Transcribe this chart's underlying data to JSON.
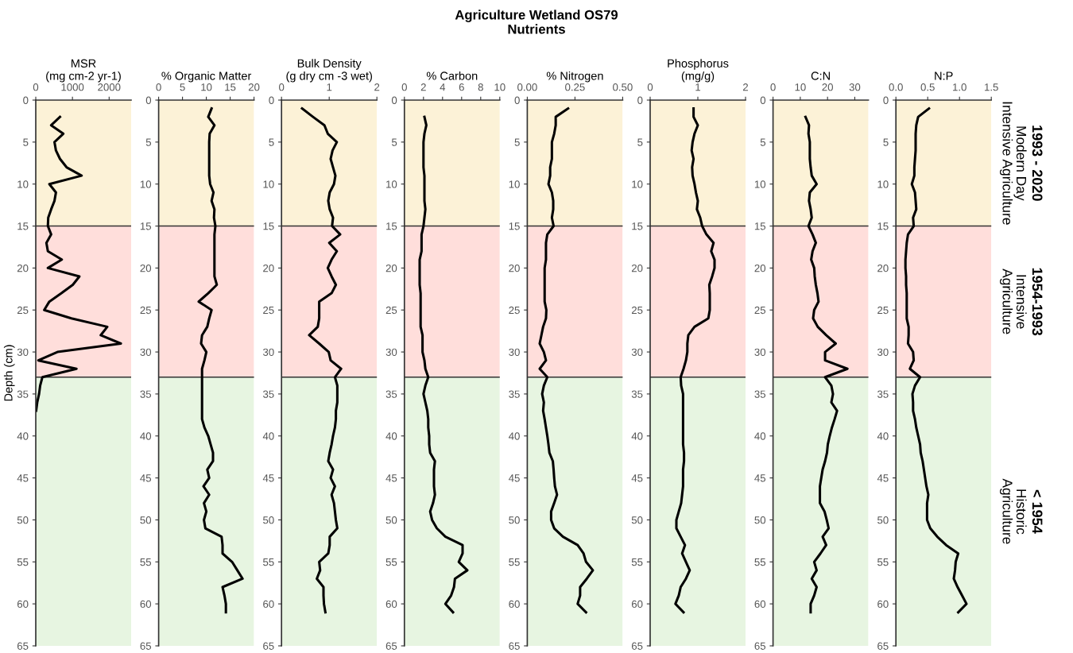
{
  "chart_data": [
    {
      "type": "line",
      "orientation": "horizontal",
      "xlabel": "MSR\n(mg cm-2 yr-1)",
      "ylabel": "Depth (cm)",
      "color": "#000000",
      "x": [
        2,
        3,
        4,
        5,
        6,
        7,
        8,
        9,
        10,
        11,
        12,
        13,
        14,
        15,
        16,
        17,
        18,
        19,
        20,
        21,
        22,
        23,
        24,
        25,
        26,
        27,
        28,
        29,
        30,
        31,
        32,
        33,
        34,
        35,
        36,
        37
      ],
      "values": [
        660,
        420,
        750,
        510,
        550,
        660,
        840,
        1250,
        370,
        550,
        510,
        420,
        340,
        330,
        420,
        290,
        330,
        710,
        330,
        1190,
        1010,
        700,
        370,
        230,
        970,
        1950,
        1770,
        2320,
        590,
        70,
        1110,
        180,
        120,
        90,
        40,
        10
      ],
      "xlim": [
        0,
        2600
      ],
      "xticks": [
        0,
        1000,
        2000
      ],
      "ylim": [
        65,
        0
      ],
      "yticks": [
        0,
        5,
        10,
        15,
        20,
        25,
        30,
        35,
        40,
        45,
        50,
        55,
        60,
        65
      ],
      "bands": [
        {
          "axis": "y",
          "from": 0,
          "to": 15,
          "color": "#fcf2d7"
        },
        {
          "axis": "y",
          "from": 15,
          "to": 33,
          "color": "#ffdedb"
        },
        {
          "axis": "y",
          "from": 33,
          "to": 65,
          "color": "#e7f5e1"
        }
      ],
      "ref_lines": [
        {
          "axis": "y",
          "value": 15,
          "color": "#333333"
        },
        {
          "axis": "y",
          "value": 33,
          "color": "#333333"
        }
      ]
    },
    {
      "type": "line",
      "orientation": "horizontal",
      "xlabel": "% Organic Matter",
      "color": "#000000",
      "x": [
        1,
        2,
        3,
        4,
        5,
        6,
        7,
        8,
        9,
        10,
        11,
        12,
        13,
        14,
        15,
        16,
        17,
        18,
        19,
        20,
        21,
        22,
        23,
        24,
        25,
        26,
        27,
        28,
        29,
        30,
        31,
        32,
        33,
        34,
        35,
        36,
        37,
        38,
        39,
        40,
        41,
        42,
        43,
        44,
        45,
        46,
        47,
        48,
        49,
        50,
        51,
        52,
        53,
        54,
        55,
        56,
        57,
        58,
        59,
        60,
        61
      ],
      "values": [
        11.1,
        10.4,
        11.7,
        10.7,
        10.6,
        10.6,
        10.6,
        10.6,
        10.6,
        10.8,
        11.5,
        11.1,
        11.7,
        11.6,
        11.9,
        11.7,
        11.7,
        11.7,
        11.7,
        11.7,
        11.7,
        12.2,
        10.4,
        8.4,
        11.1,
        10.6,
        10.2,
        9.1,
        8.9,
        10.0,
        9.6,
        9.1,
        9.1,
        9.1,
        9.1,
        9.1,
        9.1,
        9.1,
        9.6,
        10.4,
        10.9,
        11.4,
        11.4,
        10.2,
        10.6,
        9.4,
        10.6,
        9.5,
        10.0,
        9.5,
        9.8,
        13.2,
        13.4,
        13.4,
        15.4,
        16.5,
        17.6,
        13.4,
        13.8,
        14.1,
        14.1
      ],
      "xlim": [
        0,
        20
      ],
      "xticks": [
        0,
        5,
        10,
        15,
        20
      ],
      "ylim": [
        65,
        0
      ],
      "yticks": [
        0,
        5,
        10,
        15,
        20,
        25,
        30,
        35,
        40,
        45,
        50,
        55,
        60,
        65
      ],
      "bands": [
        {
          "axis": "y",
          "from": 0,
          "to": 15,
          "color": "#fcf2d7"
        },
        {
          "axis": "y",
          "from": 15,
          "to": 33,
          "color": "#ffdedb"
        },
        {
          "axis": "y",
          "from": 33,
          "to": 65,
          "color": "#e7f5e1"
        }
      ],
      "ref_lines": [
        {
          "axis": "y",
          "value": 15,
          "color": "#333333"
        },
        {
          "axis": "y",
          "value": 33,
          "color": "#333333"
        }
      ]
    },
    {
      "type": "line",
      "orientation": "horizontal",
      "xlabel": "Bulk Density\n(g dry cm -3 wet)",
      "color": "#000000",
      "x": [
        1,
        2,
        3,
        4,
        5,
        6,
        7,
        8,
        9,
        10,
        11,
        12,
        13,
        14,
        15,
        16,
        17,
        18,
        19,
        20,
        21,
        22,
        23,
        24,
        25,
        26,
        27,
        28,
        29,
        30,
        31,
        32,
        33,
        34,
        35,
        36,
        37,
        38,
        39,
        40,
        41,
        42,
        43,
        44,
        45,
        46,
        47,
        48,
        49,
        50,
        51,
        52,
        53,
        54,
        55,
        56,
        57,
        58,
        59,
        60,
        61
      ],
      "values": [
        0.43,
        0.66,
        0.9,
        0.97,
        1.16,
        1.07,
        1.03,
        1.08,
        1.13,
        1.1,
        1.01,
        0.98,
        1.01,
        1.08,
        1.06,
        1.23,
        1.0,
        1.16,
        1.05,
        0.97,
        1.05,
        1.14,
        1.05,
        0.79,
        0.79,
        0.79,
        0.76,
        0.58,
        0.79,
        0.99,
        1.03,
        1.25,
        1.12,
        1.17,
        1.17,
        1.17,
        1.14,
        1.14,
        1.12,
        1.08,
        1.05,
        1.01,
        0.98,
        1.08,
        1.03,
        1.12,
        1.05,
        1.1,
        1.12,
        1.14,
        1.17,
        1.01,
        1.01,
        0.98,
        0.79,
        0.81,
        0.74,
        0.88,
        0.88,
        0.89,
        0.92
      ],
      "xlim": [
        0,
        2
      ],
      "xticks": [
        0,
        1,
        2
      ],
      "ylim": [
        65,
        0
      ],
      "yticks": [
        0,
        5,
        10,
        15,
        20,
        25,
        30,
        35,
        40,
        45,
        50,
        55,
        60,
        65
      ],
      "bands": [
        {
          "axis": "y",
          "from": 0,
          "to": 15,
          "color": "#fcf2d7"
        },
        {
          "axis": "y",
          "from": 15,
          "to": 33,
          "color": "#ffdedb"
        },
        {
          "axis": "y",
          "from": 33,
          "to": 65,
          "color": "#e7f5e1"
        }
      ],
      "ref_lines": [
        {
          "axis": "y",
          "value": 15,
          "color": "#333333"
        },
        {
          "axis": "y",
          "value": 33,
          "color": "#333333"
        }
      ]
    },
    {
      "type": "line",
      "orientation": "horizontal",
      "xlabel": "% Carbon",
      "color": "#000000",
      "x": [
        2,
        3,
        4,
        5,
        6,
        7,
        8,
        9,
        10,
        11,
        12,
        13,
        14,
        15,
        16,
        17,
        18,
        19,
        20,
        21,
        22,
        23,
        24,
        25,
        26,
        27,
        28,
        29,
        30,
        31,
        32,
        33,
        34,
        35,
        36,
        37,
        38,
        39,
        40,
        41,
        42,
        43,
        44,
        45,
        46,
        47,
        48,
        49,
        50,
        51,
        52,
        53,
        54,
        55,
        56,
        57,
        58,
        59,
        60,
        61
      ],
      "values": [
        2.1,
        2.3,
        2.1,
        2.0,
        2.0,
        2.0,
        2.0,
        2.1,
        2.1,
        2.1,
        2.1,
        2.2,
        2.1,
        2.0,
        1.8,
        1.8,
        1.8,
        1.6,
        1.6,
        1.6,
        1.6,
        1.7,
        1.7,
        1.7,
        1.7,
        1.7,
        1.9,
        1.9,
        1.9,
        2.1,
        2.2,
        2.5,
        2.2,
        2.0,
        2.2,
        2.4,
        2.5,
        2.5,
        2.6,
        2.6,
        2.7,
        3.2,
        3.1,
        3.1,
        3.1,
        3.2,
        3.0,
        2.7,
        2.9,
        3.4,
        4.3,
        6.1,
        6.1,
        5.7,
        6.6,
        5.3,
        5.2,
        4.9,
        4.3,
        5.1
      ],
      "xlim": [
        0,
        10
      ],
      "xticks": [
        0,
        2,
        4,
        6,
        8,
        10
      ],
      "ylim": [
        65,
        0
      ],
      "yticks": [
        0,
        5,
        10,
        15,
        20,
        25,
        30,
        35,
        40,
        45,
        50,
        55,
        60,
        65
      ],
      "bands": [
        {
          "axis": "y",
          "from": 0,
          "to": 15,
          "color": "#fcf2d7"
        },
        {
          "axis": "y",
          "from": 15,
          "to": 33,
          "color": "#ffdedb"
        },
        {
          "axis": "y",
          "from": 33,
          "to": 65,
          "color": "#e7f5e1"
        }
      ],
      "ref_lines": [
        {
          "axis": "y",
          "value": 15,
          "color": "#333333"
        },
        {
          "axis": "y",
          "value": 33,
          "color": "#333333"
        }
      ]
    },
    {
      "type": "line",
      "orientation": "horizontal",
      "title": "Agriculture Wetland OS79\nNutrients",
      "xlabel": "% Nitrogen",
      "color": "#000000",
      "x": [
        1,
        2,
        3,
        4,
        5,
        6,
        7,
        8,
        9,
        10,
        11,
        12,
        13,
        14,
        15,
        16,
        17,
        18,
        19,
        20,
        21,
        22,
        23,
        24,
        25,
        26,
        27,
        28,
        29,
        30,
        31,
        32,
        33,
        34,
        35,
        36,
        37,
        38,
        39,
        40,
        41,
        42,
        43,
        44,
        45,
        46,
        47,
        48,
        49,
        50,
        51,
        52,
        53,
        54,
        55,
        56,
        57,
        58,
        59,
        60,
        61
      ],
      "values": [
        0.214,
        0.149,
        0.149,
        0.141,
        0.129,
        0.129,
        0.129,
        0.12,
        0.12,
        0.111,
        0.129,
        0.136,
        0.136,
        0.129,
        0.138,
        0.105,
        0.098,
        0.098,
        0.098,
        0.091,
        0.091,
        0.091,
        0.091,
        0.091,
        0.1,
        0.098,
        0.083,
        0.074,
        0.065,
        0.087,
        0.098,
        0.065,
        0.105,
        0.087,
        0.078,
        0.087,
        0.083,
        0.091,
        0.098,
        0.105,
        0.111,
        0.116,
        0.134,
        0.138,
        0.141,
        0.145,
        0.156,
        0.141,
        0.125,
        0.125,
        0.141,
        0.187,
        0.264,
        0.295,
        0.308,
        0.344,
        0.312,
        0.277,
        0.277,
        0.264,
        0.308
      ],
      "xlim": [
        0,
        0.5
      ],
      "xticks": [
        {
          "value": 0,
          "label": "0.00"
        },
        {
          "value": 0.25,
          "label": "0.25"
        },
        {
          "value": 0.5,
          "label": "0.50"
        }
      ],
      "ylim": [
        65,
        0
      ],
      "yticks": [
        0,
        5,
        10,
        15,
        20,
        25,
        30,
        35,
        40,
        45,
        50,
        55,
        60,
        65
      ],
      "bands": [
        {
          "axis": "y",
          "from": 0,
          "to": 15,
          "color": "#fcf2d7"
        },
        {
          "axis": "y",
          "from": 15,
          "to": 33,
          "color": "#ffdedb"
        },
        {
          "axis": "y",
          "from": 33,
          "to": 65,
          "color": "#e7f5e1"
        }
      ],
      "ref_lines": [
        {
          "axis": "y",
          "value": 15,
          "color": "#333333"
        },
        {
          "axis": "y",
          "value": 33,
          "color": "#333333"
        }
      ]
    },
    {
      "type": "line",
      "orientation": "horizontal",
      "xlabel": "Phosphorus\n(mg/g)",
      "color": "#000000",
      "x": [
        1,
        2,
        3,
        4,
        5,
        6,
        7,
        8,
        9,
        10,
        11,
        12,
        13,
        14,
        15,
        16,
        17,
        18,
        19,
        20,
        21,
        22,
        23,
        24,
        25,
        26,
        27,
        28,
        29,
        30,
        31,
        32,
        33,
        34,
        35,
        36,
        37,
        38,
        39,
        40,
        41,
        42,
        43,
        44,
        45,
        46,
        47,
        48,
        49,
        50,
        51,
        52,
        53,
        54,
        55,
        56,
        57,
        58,
        59,
        60,
        61
      ],
      "values": [
        0.91,
        0.91,
        1.0,
        0.93,
        0.89,
        0.87,
        0.91,
        0.88,
        0.89,
        0.93,
        0.96,
        1.0,
        0.98,
        1.05,
        1.09,
        1.18,
        1.33,
        1.28,
        1.35,
        1.35,
        1.3,
        1.24,
        1.25,
        1.25,
        1.25,
        1.22,
        0.93,
        0.8,
        0.78,
        0.78,
        0.75,
        0.7,
        0.64,
        0.65,
        0.69,
        0.69,
        0.69,
        0.69,
        0.69,
        0.69,
        0.69,
        0.71,
        0.71,
        0.69,
        0.69,
        0.69,
        0.67,
        0.65,
        0.6,
        0.55,
        0.55,
        0.64,
        0.73,
        0.67,
        0.75,
        0.83,
        0.75,
        0.64,
        0.6,
        0.53,
        0.7
      ],
      "xlim": [
        0,
        2
      ],
      "xticks": [
        0,
        1,
        2
      ],
      "ylim": [
        65,
        0
      ],
      "yticks": [
        0,
        5,
        10,
        15,
        20,
        25,
        30,
        35,
        40,
        45,
        50,
        55,
        60,
        65
      ],
      "bands": [
        {
          "axis": "y",
          "from": 0,
          "to": 15,
          "color": "#fcf2d7"
        },
        {
          "axis": "y",
          "from": 15,
          "to": 33,
          "color": "#ffdedb"
        },
        {
          "axis": "y",
          "from": 33,
          "to": 65,
          "color": "#e7f5e1"
        }
      ],
      "ref_lines": [
        {
          "axis": "y",
          "value": 15,
          "color": "#333333"
        },
        {
          "axis": "y",
          "value": 33,
          "color": "#333333"
        }
      ]
    },
    {
      "type": "line",
      "orientation": "horizontal",
      "xlabel": "C:N",
      "color": "#000000",
      "x": [
        2,
        3,
        4,
        5,
        6,
        7,
        8,
        9,
        10,
        11,
        12,
        13,
        14,
        15,
        16,
        17,
        18,
        19,
        20,
        21,
        22,
        23,
        24,
        25,
        26,
        27,
        28,
        29,
        30,
        31,
        32,
        33,
        34,
        35,
        36,
        37,
        38,
        39,
        40,
        41,
        42,
        43,
        44,
        45,
        46,
        47,
        48,
        49,
        50,
        51,
        52,
        53,
        54,
        55,
        56,
        57,
        58,
        59,
        60,
        61
      ],
      "values": [
        11.9,
        13.2,
        13.0,
        13.5,
        13.5,
        13.5,
        13.8,
        14.2,
        16.0,
        13.5,
        13.2,
        13.8,
        14.2,
        13.0,
        14.5,
        15.7,
        14.5,
        14.0,
        15.1,
        15.3,
        15.7,
        16.3,
        16.7,
        15.1,
        14.7,
        16.4,
        19.5,
        23.0,
        19.1,
        19.1,
        27.3,
        19.1,
        21.4,
        22.0,
        21.4,
        23.5,
        22.6,
        21.6,
        20.8,
        20.1,
        19.8,
        19.1,
        18.2,
        17.7,
        17.2,
        17.2,
        17.2,
        18.9,
        19.7,
        20.4,
        18.2,
        19.5,
        17.4,
        15.1,
        16.0,
        14.2,
        16.0,
        15.1,
        13.8,
        13.8
      ],
      "xlim": [
        0,
        35
      ],
      "xticks": [
        0,
        10,
        20,
        30
      ],
      "ylim": [
        65,
        0
      ],
      "yticks": [
        0,
        5,
        10,
        15,
        20,
        25,
        30,
        35,
        40,
        45,
        50,
        55,
        60,
        65
      ],
      "bands": [
        {
          "axis": "y",
          "from": 0,
          "to": 15,
          "color": "#fcf2d7"
        },
        {
          "axis": "y",
          "from": 15,
          "to": 33,
          "color": "#ffdedb"
        },
        {
          "axis": "y",
          "from": 33,
          "to": 65,
          "color": "#e7f5e1"
        }
      ],
      "ref_lines": [
        {
          "axis": "y",
          "value": 15,
          "color": "#333333"
        },
        {
          "axis": "y",
          "value": 33,
          "color": "#333333"
        }
      ]
    },
    {
      "type": "line",
      "orientation": "horizontal",
      "xlabel": "N:P",
      "color": "#000000",
      "x": [
        1,
        2,
        3,
        4,
        5,
        6,
        7,
        8,
        9,
        10,
        11,
        12,
        13,
        14,
        15,
        16,
        17,
        18,
        19,
        20,
        21,
        22,
        23,
        24,
        25,
        26,
        27,
        28,
        29,
        30,
        31,
        32,
        33,
        34,
        35,
        36,
        37,
        38,
        39,
        40,
        41,
        42,
        43,
        44,
        45,
        46,
        47,
        48,
        49,
        50,
        51,
        52,
        53,
        54,
        55,
        56,
        57,
        58,
        59,
        60,
        61
      ],
      "values": [
        0.52,
        0.35,
        0.32,
        0.31,
        0.31,
        0.31,
        0.3,
        0.29,
        0.29,
        0.25,
        0.3,
        0.31,
        0.32,
        0.27,
        0.28,
        0.19,
        0.17,
        0.16,
        0.15,
        0.15,
        0.16,
        0.16,
        0.17,
        0.17,
        0.17,
        0.17,
        0.2,
        0.2,
        0.19,
        0.27,
        0.28,
        0.22,
        0.38,
        0.3,
        0.26,
        0.27,
        0.27,
        0.3,
        0.32,
        0.35,
        0.38,
        0.39,
        0.42,
        0.44,
        0.46,
        0.48,
        0.51,
        0.49,
        0.49,
        0.49,
        0.54,
        0.65,
        0.79,
        0.98,
        0.94,
        0.93,
        0.91,
        0.97,
        1.04,
        1.11,
        0.98
      ],
      "xlim": [
        0,
        1.5
      ],
      "xticks": [
        {
          "value": 0,
          "label": "0.0"
        },
        {
          "value": 0.5,
          "label": "0.5"
        },
        {
          "value": 1.0,
          "label": "1.0"
        },
        {
          "value": 1.5,
          "label": "1.5"
        }
      ],
      "ylim": [
        65,
        0
      ],
      "yticks": [
        0,
        5,
        10,
        15,
        20,
        25,
        30,
        35,
        40,
        45,
        50,
        55,
        60,
        65
      ],
      "bands": [
        {
          "axis": "y",
          "from": 0,
          "to": 15,
          "color": "#fcf2d7",
          "label": "1993 - 2020"
        },
        {
          "axis": "y",
          "from": 15,
          "to": 33,
          "color": "#ffdedb",
          "label": "1954-1993"
        },
        {
          "axis": "y",
          "from": 33,
          "to": 65,
          "color": "#e7f5e1",
          "label": "< 1954"
        }
      ],
      "ref_lines": [
        {
          "axis": "y",
          "value": 15,
          "color": "#333333"
        },
        {
          "axis": "y",
          "value": 33,
          "color": "#333333"
        }
      ],
      "annotations": [
        "Modern Day\nIntensive Agriculture",
        "Intensive\nAgriculture",
        "Historic\nAgriculture"
      ]
    }
  ]
}
